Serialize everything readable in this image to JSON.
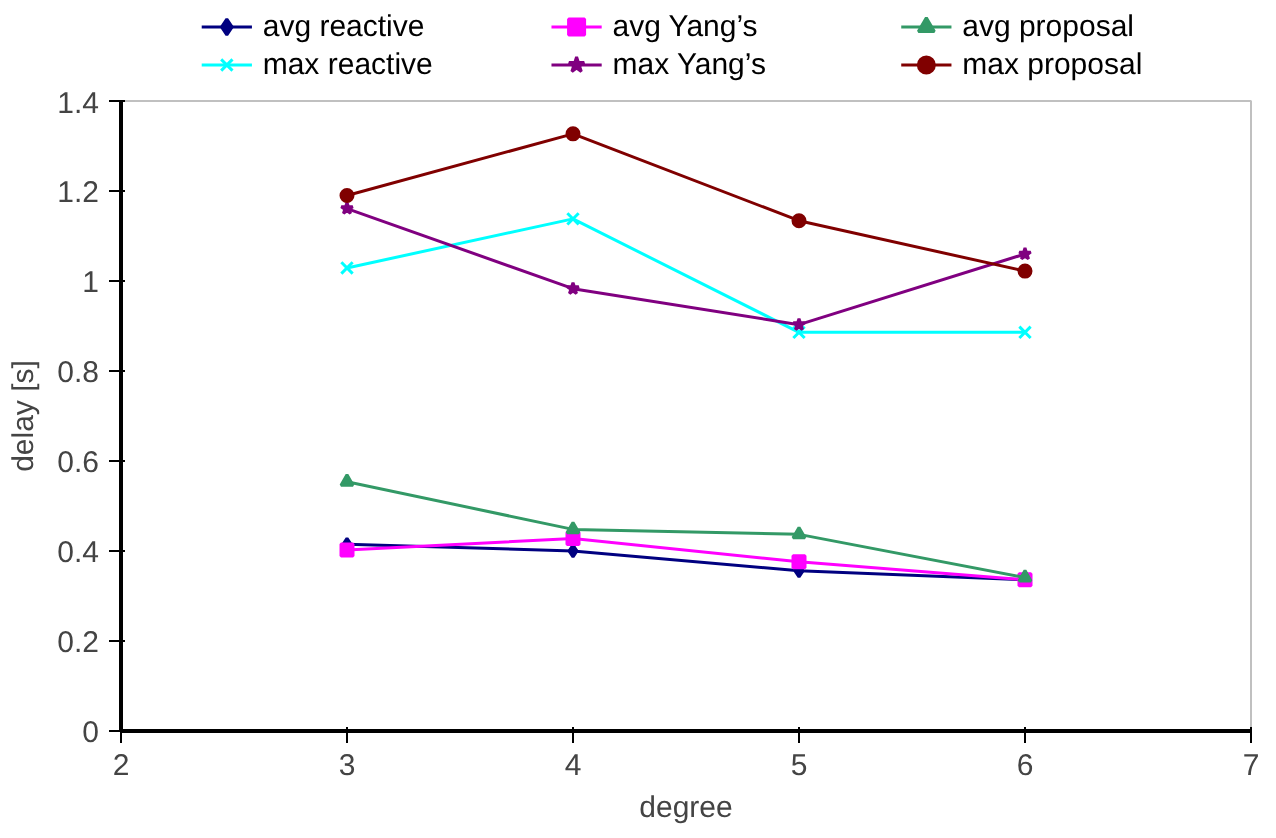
{
  "chart_data": {
    "type": "line",
    "xlabel": "degree",
    "ylabel": "delay [s]",
    "x": [
      3,
      4,
      5,
      6
    ],
    "xlim": [
      2,
      7
    ],
    "xticks": [
      2,
      3,
      4,
      5,
      6,
      7
    ],
    "ylim": [
      0,
      1.4
    ],
    "yticks": [
      0,
      0.2,
      0.4,
      0.6,
      0.8,
      1,
      1.2,
      1.4
    ],
    "grid": false,
    "legend": "top",
    "line_style": "solid",
    "series": [
      {
        "name": "avg reactive",
        "color": "#000080",
        "marker": "diamond",
        "values": [
          0.415,
          0.4,
          0.356,
          0.336
        ]
      },
      {
        "name": "avg Yang’s",
        "color": "#ff00ff",
        "marker": "square",
        "values": [
          0.402,
          0.428,
          0.376,
          0.336
        ]
      },
      {
        "name": "avg proposal",
        "color": "#339966",
        "marker": "triangle",
        "values": [
          0.554,
          0.448,
          0.437,
          0.341
        ]
      },
      {
        "name": "max reactive",
        "color": "#00ffff",
        "marker": "cross",
        "values": [
          1.029,
          1.138,
          0.886,
          0.886
        ]
      },
      {
        "name": "max Yang’s",
        "color": "#800080",
        "marker": "star",
        "values": [
          1.161,
          0.983,
          0.903,
          1.06
        ]
      },
      {
        "name": "max proposal",
        "color": "#800000",
        "marker": "circle",
        "values": [
          1.19,
          1.327,
          1.134,
          1.022
        ]
      }
    ]
  }
}
